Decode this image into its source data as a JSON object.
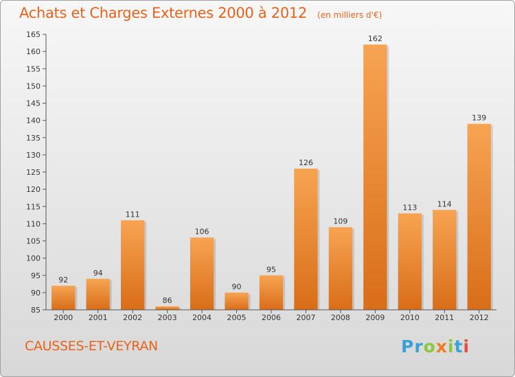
{
  "chart_data": {
    "type": "bar",
    "title": "Achats et Charges Externes 2000 à 2012",
    "unit": "(en milliers d'€)",
    "categories": [
      "2000",
      "2001",
      "2002",
      "2003",
      "2004",
      "2005",
      "2006",
      "2007",
      "2008",
      "2009",
      "2010",
      "2011",
      "2012"
    ],
    "values": [
      92,
      94,
      111,
      86,
      106,
      90,
      95,
      126,
      109,
      162,
      113,
      114,
      139
    ],
    "ylim": [
      85,
      165
    ],
    "yticks": [
      85,
      90,
      95,
      100,
      105,
      110,
      115,
      120,
      125,
      130,
      135,
      140,
      145,
      150,
      155,
      160,
      165
    ],
    "grid": false,
    "bar_color": "#f08c30"
  },
  "footer": {
    "commune": "CAUSSES-ET-VEYRAN",
    "brand_letters": [
      {
        "ch": "P",
        "color": "#3aa0d8"
      },
      {
        "ch": "r",
        "color": "#3aa0d8"
      },
      {
        "ch": "o",
        "color": "#8dc63f"
      },
      {
        "ch": "x",
        "color": "#f07c20"
      },
      {
        "ch": "i",
        "color": "#8dc63f"
      },
      {
        "ch": "t",
        "color": "#3aa0d8"
      },
      {
        "ch": "i",
        "color": "#e84b3a"
      }
    ]
  }
}
